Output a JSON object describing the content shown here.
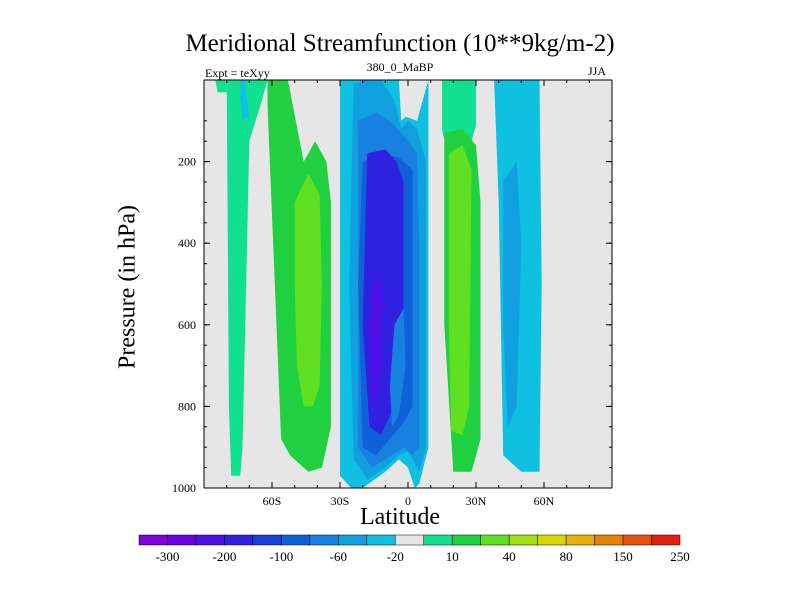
{
  "chart_data": {
    "type": "heatmap",
    "title": "Meridional Streamfunction (10**9kg/m-2)",
    "subtitle_left": "Expt = teXyy",
    "subtitle_center": "380_0_MaBP",
    "subtitle_right": "JJA",
    "xlabel": "Latitude",
    "ylabel": "Pressure (in hPa)",
    "xlim": [
      -90,
      90
    ],
    "ylim": [
      1000,
      0
    ],
    "x_ticks": [
      {
        "value": -60,
        "label": "60S"
      },
      {
        "value": -30,
        "label": "30S"
      },
      {
        "value": 0,
        "label": "0"
      },
      {
        "value": 30,
        "label": "30N"
      },
      {
        "value": 60,
        "label": "60N"
      }
    ],
    "y_ticks": [
      {
        "value": 200,
        "label": "200"
      },
      {
        "value": 400,
        "label": "400"
      },
      {
        "value": 600,
        "label": "600"
      },
      {
        "value": 800,
        "label": "800"
      },
      {
        "value": 1000,
        "label": "1000"
      }
    ],
    "colorbar": {
      "colors": [
        "#8000e0",
        "#6a00e6",
        "#4f10e8",
        "#3020e0",
        "#1840d8",
        "#1060d8",
        "#1880e0",
        "#10a0e0",
        "#10c0e0",
        "#e6e6e6",
        "#10e090",
        "#20d040",
        "#60e020",
        "#a0e010",
        "#d8d800",
        "#e8b000",
        "#e88000",
        "#e85010",
        "#e02010"
      ],
      "labels": [
        "-300",
        "-200",
        "-100",
        "-60",
        "-20",
        "10",
        "40",
        "80",
        "150",
        "250"
      ]
    },
    "background_color": "#e6e6e6",
    "contour_regions": [
      {
        "level": "10",
        "color": "#10e090",
        "x": [
          -74,
          -62,
          -65,
          -70,
          -73,
          -74,
          -78,
          -79,
          -80
        ],
        "y": [
          0,
          0,
          60,
          150,
          900,
          970,
          970,
          800,
          0
        ]
      },
      {
        "level": "40",
        "color": "#20d040",
        "x": [
          -62,
          -53,
          -46,
          -41,
          -36,
          -34,
          -34,
          -38,
          -44,
          -52,
          -56,
          -62
        ],
        "y": [
          0,
          0,
          200,
          150,
          200,
          300,
          850,
          950,
          960,
          920,
          880,
          60
        ]
      },
      {
        "level": "80",
        "color": "#60e020",
        "x": [
          -50,
          -44,
          -39,
          -38,
          -39,
          -42,
          -46,
          -49,
          -50
        ],
        "y": [
          300,
          230,
          280,
          500,
          750,
          800,
          800,
          700,
          500
        ]
      },
      {
        "level": "10",
        "color": "#10e090",
        "x": [
          -85,
          -80,
          -80,
          -84,
          -85
        ],
        "y": [
          0,
          0,
          30,
          30,
          0
        ]
      },
      {
        "level": "-20",
        "color": "#10c0e0",
        "x": [
          -74,
          -72,
          -70,
          -73,
          -74
        ],
        "y": [
          0,
          0,
          90,
          100,
          50
        ]
      },
      {
        "level": "-20",
        "color": "#10c0e0",
        "x": [
          -30,
          -4,
          -3,
          -1,
          4,
          9,
          9,
          5,
          3,
          0,
          -4,
          -10,
          -20,
          -25,
          -30,
          -30
        ],
        "y": [
          0,
          0,
          100,
          90,
          100,
          0,
          900,
          990,
          1000,
          950,
          930,
          960,
          1000,
          1000,
          970,
          500
        ]
      },
      {
        "level": "-60",
        "color": "#10a0e0",
        "x": [
          -24,
          -18,
          -12,
          -6,
          -3,
          0,
          4,
          8,
          8,
          5,
          0,
          -4,
          -10,
          -18,
          -24,
          -26
        ],
        "y": [
          10,
          0,
          0,
          50,
          120,
          100,
          120,
          200,
          900,
          960,
          910,
          920,
          950,
          980,
          930,
          500
        ]
      },
      {
        "level": "-100",
        "color": "#1880e0",
        "x": [
          -22,
          -14,
          -6,
          0,
          4,
          5,
          5,
          2,
          -2,
          -10,
          -16,
          -22,
          -22
        ],
        "y": [
          100,
          80,
          110,
          150,
          180,
          400,
          900,
          920,
          900,
          930,
          950,
          900,
          500
        ]
      },
      {
        "level": "-200",
        "color": "#1060d8",
        "x": [
          -20,
          -12,
          -4,
          2,
          2,
          -2,
          -8,
          -14,
          -20,
          -22
        ],
        "y": [
          200,
          180,
          190,
          220,
          800,
          840,
          880,
          920,
          900,
          500
        ]
      },
      {
        "level": "-200",
        "color": "#3020e0",
        "x": [
          -18,
          -10,
          -5,
          -2,
          -2,
          -6,
          -12,
          -17,
          -20
        ],
        "y": [
          180,
          170,
          200,
          250,
          680,
          800,
          870,
          850,
          600
        ]
      },
      {
        "level": "-300",
        "color": "#4f10e8",
        "x": [
          -15,
          -12,
          -11,
          -12,
          -14,
          -16,
          -17
        ],
        "y": [
          500,
          490,
          550,
          700,
          800,
          780,
          600
        ]
      },
      {
        "level": "-20",
        "color": "#1880e0",
        "x": [
          -6,
          -2,
          -1,
          -4,
          -7,
          -8
        ],
        "y": [
          600,
          560,
          700,
          820,
          850,
          750
        ]
      },
      {
        "level": "10",
        "color": "#10e090",
        "x": [
          15,
          30,
          30,
          26,
          18,
          15
        ],
        "y": [
          0,
          0,
          110,
          190,
          200,
          120
        ]
      },
      {
        "level": "40",
        "color": "#20d040",
        "x": [
          16,
          24,
          30,
          32,
          32,
          28,
          20,
          16
        ],
        "y": [
          130,
          120,
          160,
          300,
          880,
          960,
          960,
          600
        ]
      },
      {
        "level": "80",
        "color": "#60e020",
        "x": [
          18,
          24,
          28,
          27,
          24,
          19,
          18
        ],
        "y": [
          180,
          160,
          220,
          800,
          870,
          860,
          600
        ]
      },
      {
        "level": "-20",
        "color": "#10c0e0",
        "x": [
          38,
          54,
          58,
          59,
          58,
          50,
          42,
          40
        ],
        "y": [
          0,
          0,
          0,
          500,
          960,
          960,
          920,
          300
        ]
      },
      {
        "level": "-60",
        "color": "#10a0e0",
        "x": [
          42,
          48,
          50,
          48,
          44,
          42
        ],
        "y": [
          250,
          200,
          400,
          800,
          850,
          600
        ]
      }
    ]
  }
}
